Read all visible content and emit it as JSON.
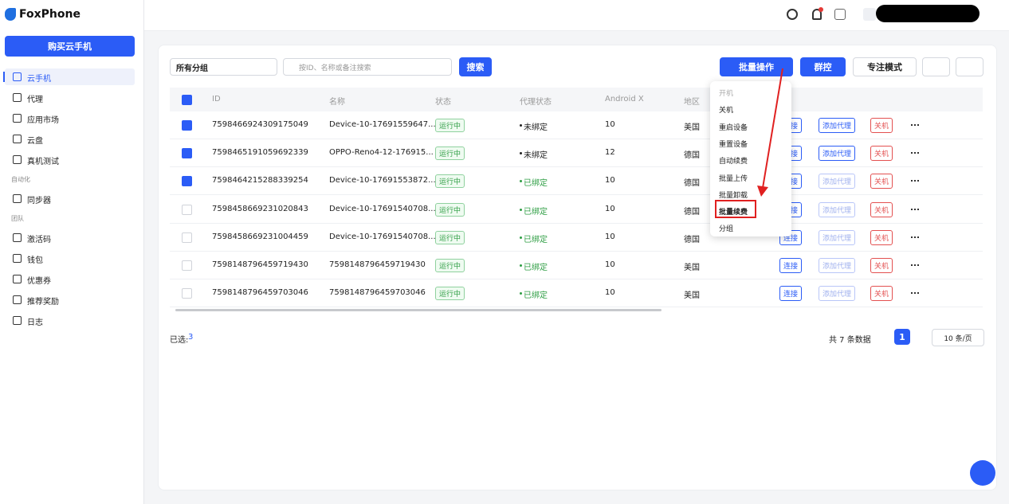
{
  "sidebar": {
    "logo": "FoxPhone",
    "buy_button": "购买云手机",
    "menu": [
      "云手机",
      "代理",
      "应用市场",
      "云盘",
      "真机测试"
    ],
    "sections": [
      {
        "title": "自动化",
        "items": [
          "同步器"
        ]
      },
      {
        "title": "团队",
        "items": [
          "激活码",
          "钱包",
          "优惠券",
          "推荐奖励",
          "日志"
        ]
      }
    ]
  },
  "toolbar": {
    "group_select": "所有分组",
    "search_placeholder": "按ID、名称或备注搜索",
    "search_button": "搜索",
    "batch_button": "批量操作",
    "group_control": "群控",
    "focus_mode": "专注模式"
  },
  "table": {
    "columns": [
      "ID",
      "名称",
      "状态",
      "代理状态",
      "Android X",
      "地区"
    ],
    "actions": [
      "连接",
      "添加代理",
      "关机"
    ],
    "rows": [
      {
        "id": "7598466924309175049",
        "name": "Device-10-17691559647...",
        "status": "运行中",
        "proxy": "未绑定",
        "android": 10,
        "region": "美国",
        "selected": true
      },
      {
        "id": "7598465191059692339",
        "name": "OPPO-Reno4-12-176915...",
        "status": "运行中",
        "proxy": "未绑定",
        "android": 12,
        "region": "德国",
        "selected": true
      },
      {
        "id": "7598464215288339254",
        "name": "Device-10-17691553872...",
        "status": "运行中",
        "proxy": "已绑定",
        "android": 10,
        "region": "德国",
        "selected": true
      },
      {
        "id": "7598458669231020843",
        "name": "Device-10-17691540708...",
        "status": "运行中",
        "proxy": "已绑定",
        "android": 10,
        "region": "德国",
        "selected": false
      },
      {
        "id": "7598458669231004459",
        "name": "Device-10-17691540708...",
        "status": "运行中",
        "proxy": "已绑定",
        "android": 10,
        "region": "德国",
        "selected": false
      },
      {
        "id": "7598148796459719430",
        "name": "7598148796459719430",
        "status": "运行中",
        "proxy": "已绑定",
        "android": 10,
        "region": "美国",
        "selected": false
      },
      {
        "id": "7598148796459703046",
        "name": "7598148796459703046",
        "status": "运行中",
        "proxy": "已绑定",
        "android": 10,
        "region": "美国",
        "selected": false
      }
    ]
  },
  "dropdown": {
    "items": [
      "开机",
      "关机",
      "重启设备",
      "重置设备",
      "自动续费",
      "批量上传",
      "批量卸载",
      "批量续费",
      "分组"
    ],
    "disabled": 0,
    "highlighted": 7
  },
  "footer": {
    "selected_label": "已选:",
    "selected_count": 3,
    "total": "共 7 条数据",
    "page": 1,
    "page_size": "10 条/页"
  }
}
